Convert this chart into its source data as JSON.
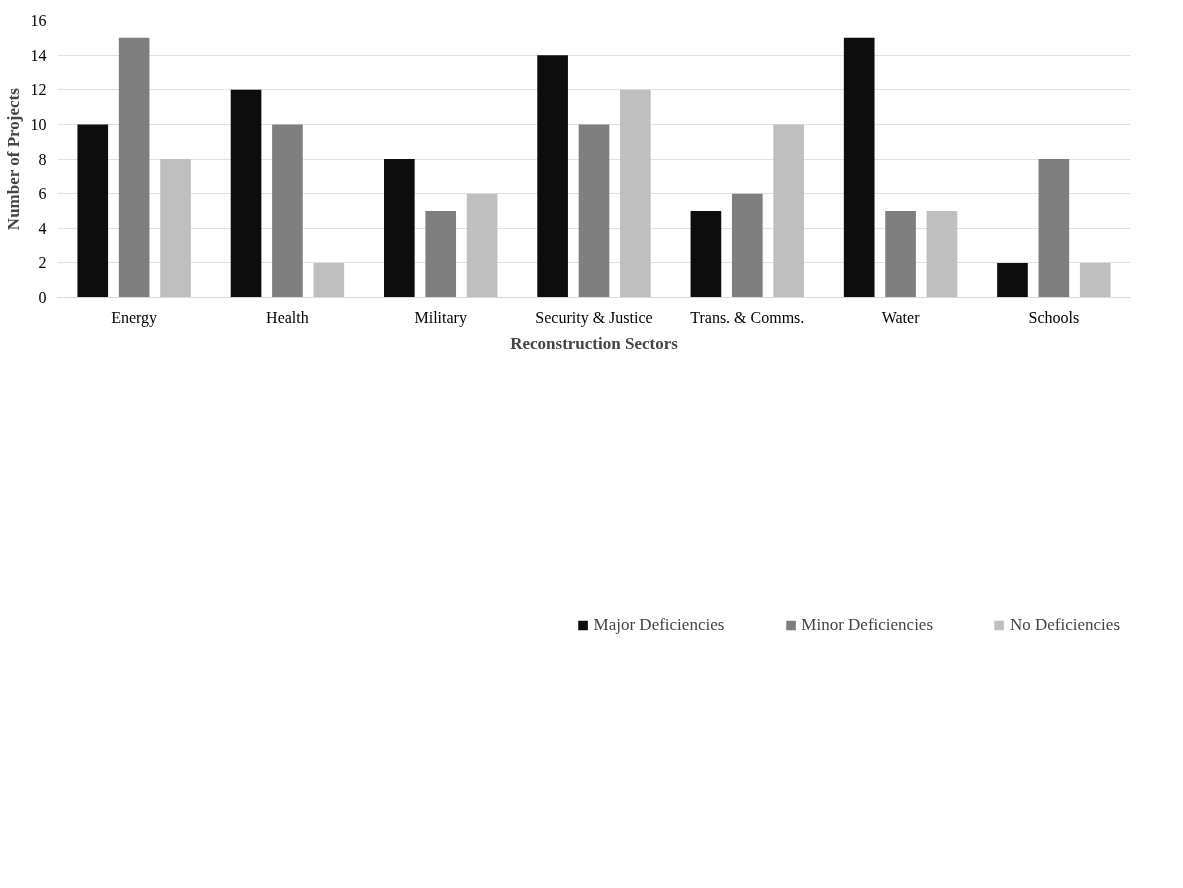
{
  "chart_data": {
    "type": "bar",
    "xlabel": "Reconstruction Sectors",
    "ylabel": "Number of Projects",
    "categories": [
      "Energy",
      "Health",
      "Military",
      "Security & Justice",
      "Trans. & Comms.",
      "Water",
      "Schools"
    ],
    "series": [
      {
        "name": "Major Deficiencies",
        "color": "#0d0d0d",
        "values": [
          10,
          12,
          8,
          14,
          5,
          15,
          2
        ]
      },
      {
        "name": "Minor Deficiencies",
        "color": "#7f7f7f",
        "values": [
          15,
          10,
          5,
          10,
          6,
          5,
          8
        ]
      },
      {
        "name": "No Deficiencies",
        "color": "#bfbfbf",
        "values": [
          8,
          2,
          6,
          12,
          10,
          5,
          2
        ]
      }
    ],
    "ylim": [
      0,
      16
    ],
    "yticks": [
      0,
      2,
      4,
      6,
      8,
      10,
      12,
      14,
      16
    ],
    "grid": "y",
    "legend": "bottom"
  }
}
